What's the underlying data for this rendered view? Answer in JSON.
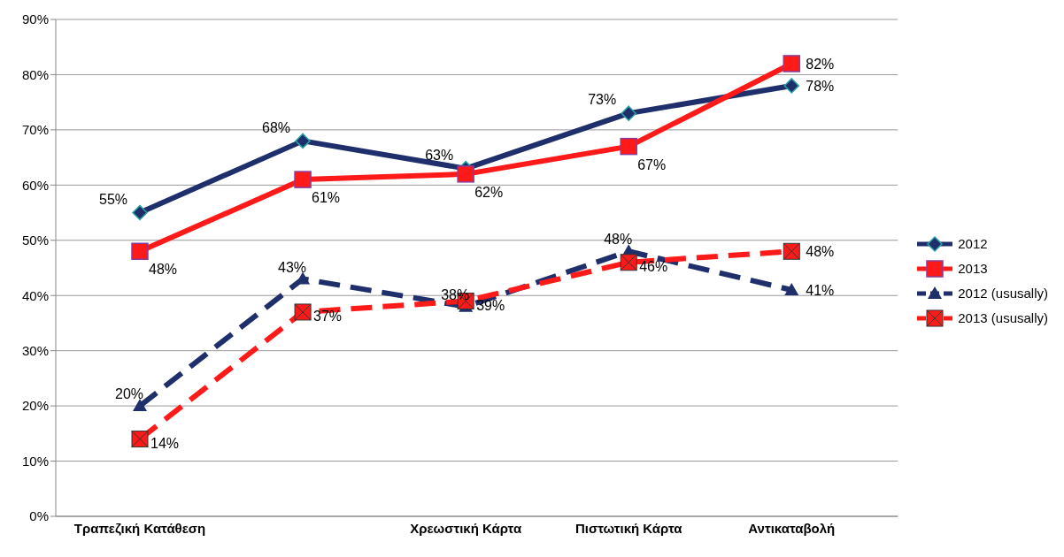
{
  "chart_data": {
    "type": "line",
    "categories": [
      "Τραπεζική Κατάθεση",
      null,
      "Χρεωστική Κάρτα",
      "Πιστωτική Κάρτα",
      "Αντικαταβολή"
    ],
    "series": [
      {
        "name": "2012",
        "color": "#1f2f6b",
        "marker": "diamond",
        "line_style": "solid",
        "values": [
          55,
          68,
          63,
          73,
          78
        ],
        "value_labels": [
          "55%",
          "68%",
          "63%",
          "73%",
          "78%"
        ]
      },
      {
        "name": "2013",
        "color": "#ff1a1a",
        "marker": "square",
        "line_style": "solid",
        "values": [
          48,
          61,
          62,
          67,
          82
        ],
        "value_labels": [
          "48%",
          "61%",
          "62%",
          "67%",
          "82%"
        ]
      },
      {
        "name": "2012 (ususally)",
        "color": "#1f2f6b",
        "marker": "triangle",
        "line_style": "dashed",
        "values": [
          20,
          43,
          38,
          48,
          41
        ],
        "value_labels": [
          "20%",
          "43%",
          "38%",
          "48%",
          "41%"
        ]
      },
      {
        "name": "2013 (ususally)",
        "color": "#ff1a1a",
        "marker": "square",
        "line_style": "dashed",
        "values": [
          14,
          37,
          39,
          46,
          48
        ],
        "value_labels": [
          "14%",
          "37%",
          "39%",
          "46%",
          "48%"
        ]
      }
    ],
    "ylim": [
      0,
      90
    ],
    "yticks": [
      {
        "value": 0,
        "label": "0%"
      },
      {
        "value": 10,
        "label": "10%"
      },
      {
        "value": 20,
        "label": "20%"
      },
      {
        "value": 30,
        "label": "30%"
      },
      {
        "value": 40,
        "label": "40%"
      },
      {
        "value": 50,
        "label": "50%"
      },
      {
        "value": 60,
        "label": "60%"
      },
      {
        "value": 70,
        "label": "70%"
      },
      {
        "value": 80,
        "label": "80%"
      },
      {
        "value": 90,
        "label": "90%"
      }
    ],
    "grid": "y",
    "legend": "right"
  }
}
